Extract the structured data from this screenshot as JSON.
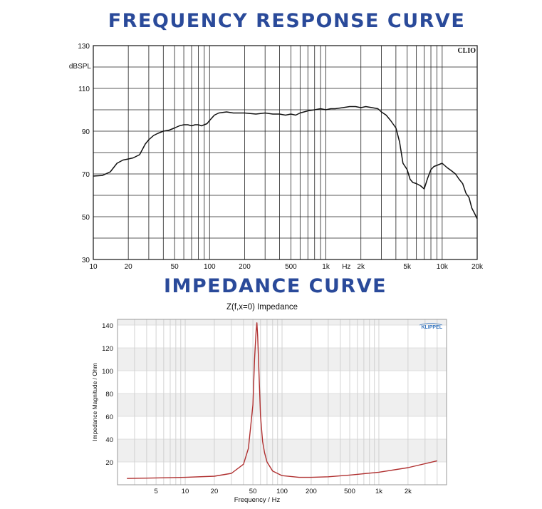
{
  "headings": {
    "frequency_response": "FREQUENCY RESPONSE CURVE",
    "impedance": "IMPEDANCE CURVE"
  },
  "colors": {
    "heading": "#2a4a9a",
    "fr_line": "#111111",
    "imp_line": "#b03030",
    "imp_band": "#efefef",
    "klippel": "#3a78c0"
  },
  "chart_data": [
    {
      "type": "line",
      "title": "",
      "brand": "CLIO",
      "ylabel": "dBSPL",
      "xlabel": "",
      "xscale": "log",
      "xlim": [
        10,
        20000
      ],
      "ylim": [
        30,
        130
      ],
      "x_ticks": [
        {
          "v": 10,
          "label": "10"
        },
        {
          "v": 20,
          "label": "20"
        },
        {
          "v": 50,
          "label": "50"
        },
        {
          "v": 100,
          "label": "100"
        },
        {
          "v": 200,
          "label": "200"
        },
        {
          "v": 500,
          "label": "500"
        },
        {
          "v": 1000,
          "label": "1k"
        },
        {
          "v": 1500,
          "label": "Hz"
        },
        {
          "v": 2000,
          "label": "2k"
        },
        {
          "v": 5000,
          "label": "5k"
        },
        {
          "v": 10000,
          "label": "10k"
        },
        {
          "v": 20000,
          "label": "20k"
        }
      ],
      "y_ticks": [
        {
          "v": 130,
          "label": "130"
        },
        {
          "v": 110,
          "label": "110"
        },
        {
          "v": 90,
          "label": "90"
        },
        {
          "v": 70,
          "label": "70"
        },
        {
          "v": 50,
          "label": "50"
        },
        {
          "v": 30,
          "label": "30"
        }
      ],
      "grid": true,
      "series": [
        {
          "x": [
            10,
            12,
            14,
            16,
            18,
            20,
            22,
            25,
            28,
            30,
            33,
            36,
            40,
            45,
            50,
            55,
            60,
            65,
            70,
            75,
            80,
            85,
            90,
            95,
            100,
            110,
            120,
            140,
            160,
            200,
            250,
            300,
            350,
            400,
            450,
            500,
            550,
            600,
            700,
            800,
            900,
            1000,
            1100,
            1200,
            1400,
            1600,
            1800,
            2000,
            2200,
            2500,
            2800,
            3000,
            3300,
            3600,
            4000,
            4300,
            4600,
            5000,
            5300,
            5600,
            6000,
            6500,
            7000,
            7500,
            8000,
            8500,
            9000,
            10000,
            11000,
            12000,
            13000,
            14000,
            15000,
            16000,
            17000,
            18000,
            19000,
            20000
          ],
          "y": [
            69,
            69.3,
            71,
            75,
            76.5,
            77,
            77.5,
            79,
            84,
            86,
            88,
            89,
            90,
            90.5,
            91.5,
            92.5,
            93,
            93,
            92.5,
            93,
            93,
            92.5,
            93,
            93.5,
            95,
            97.5,
            98.5,
            99,
            98.5,
            98.5,
            98,
            98.5,
            98,
            98,
            97.5,
            98,
            97.5,
            98.5,
            99.5,
            100,
            100.5,
            100,
            100.5,
            100.5,
            101,
            101.5,
            101.5,
            101,
            101.5,
            101,
            100.5,
            99,
            97.5,
            95,
            91.5,
            85,
            75,
            72,
            67.5,
            66,
            65.5,
            64.5,
            63,
            68,
            72,
            73.5,
            74,
            75,
            73,
            71.5,
            70,
            67.5,
            65.5,
            61,
            59,
            54,
            51.5,
            49
          ]
        }
      ]
    },
    {
      "type": "line",
      "title": "Z(f,x=0) Impedance",
      "brand": "KLIPPEL",
      "xlabel": "Frequency / Hz",
      "ylabel": "Impedance Magnitude / Ohm",
      "xscale": "log",
      "xlim": [
        2,
        5000
      ],
      "ylim": [
        0,
        145
      ],
      "x_ticks": [
        {
          "v": 5,
          "label": "5"
        },
        {
          "v": 10,
          "label": "10"
        },
        {
          "v": 20,
          "label": "20"
        },
        {
          "v": 50,
          "label": "50"
        },
        {
          "v": 100,
          "label": "100"
        },
        {
          "v": 200,
          "label": "200"
        },
        {
          "v": 500,
          "label": "500"
        },
        {
          "v": 1000,
          "label": "1k"
        },
        {
          "v": 2000,
          "label": "2k"
        }
      ],
      "y_ticks": [
        {
          "v": 20,
          "label": "20"
        },
        {
          "v": 40,
          "label": "40"
        },
        {
          "v": 60,
          "label": "60"
        },
        {
          "v": 80,
          "label": "80"
        },
        {
          "v": 100,
          "label": "100"
        },
        {
          "v": 120,
          "label": "120"
        },
        {
          "v": 140,
          "label": "140"
        }
      ],
      "grid": true,
      "series": [
        {
          "x": [
            2.5,
            5,
            10,
            20,
            30,
            40,
            45,
            50,
            52,
            54,
            55,
            56,
            58,
            60,
            63,
            66,
            70,
            80,
            100,
            150,
            200,
            300,
            500,
            1000,
            2000,
            4000
          ],
          "y": [
            5.5,
            6,
            6.5,
            7.5,
            10,
            18,
            32,
            70,
            110,
            135,
            142,
            130,
            95,
            60,
            38,
            28,
            20,
            12,
            8,
            6.5,
            6.5,
            7,
            8.5,
            11,
            15,
            21
          ]
        }
      ]
    }
  ]
}
